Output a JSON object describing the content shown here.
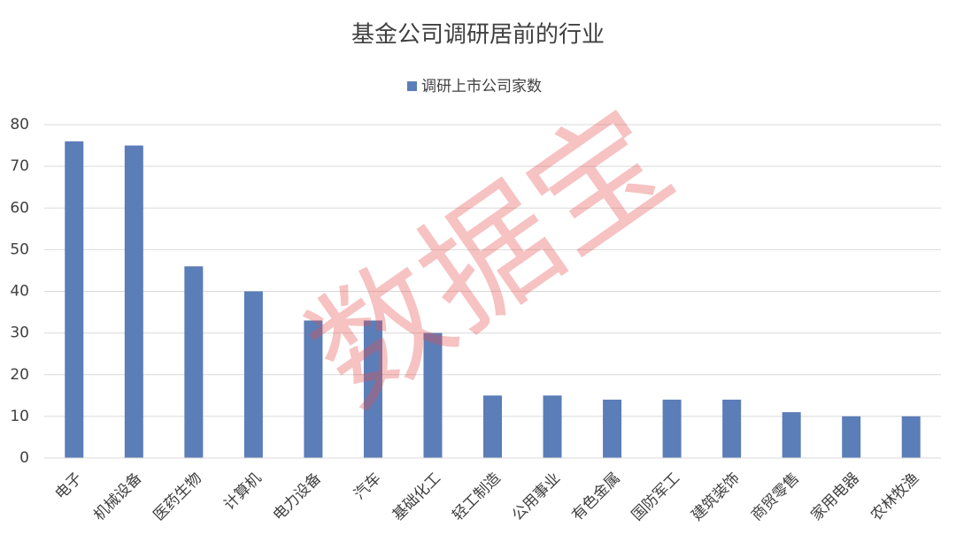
{
  "chart_data": {
    "type": "bar",
    "title": "基金公司调研居前的行业",
    "categories": [
      "电子",
      "机械设备",
      "医药生物",
      "计算机",
      "电力设备",
      "汽车",
      "基础化工",
      "轻工制造",
      "公用事业",
      "有色金属",
      "国防军工",
      "建筑装饰",
      "商贸零售",
      "家用电器",
      "农林牧渔"
    ],
    "series": [
      {
        "name": "调研上市公司家数",
        "color": "#5b7db8",
        "values": [
          76,
          75,
          46,
          40,
          33,
          33,
          30,
          15,
          15,
          14,
          14,
          14,
          11,
          10,
          10
        ]
      }
    ],
    "ylim": [
      0,
      80
    ],
    "yticks": [
      0,
      10,
      20,
      30,
      40,
      50,
      60,
      70,
      80
    ],
    "grid": true,
    "legend": "top",
    "watermark": "数据宝"
  }
}
